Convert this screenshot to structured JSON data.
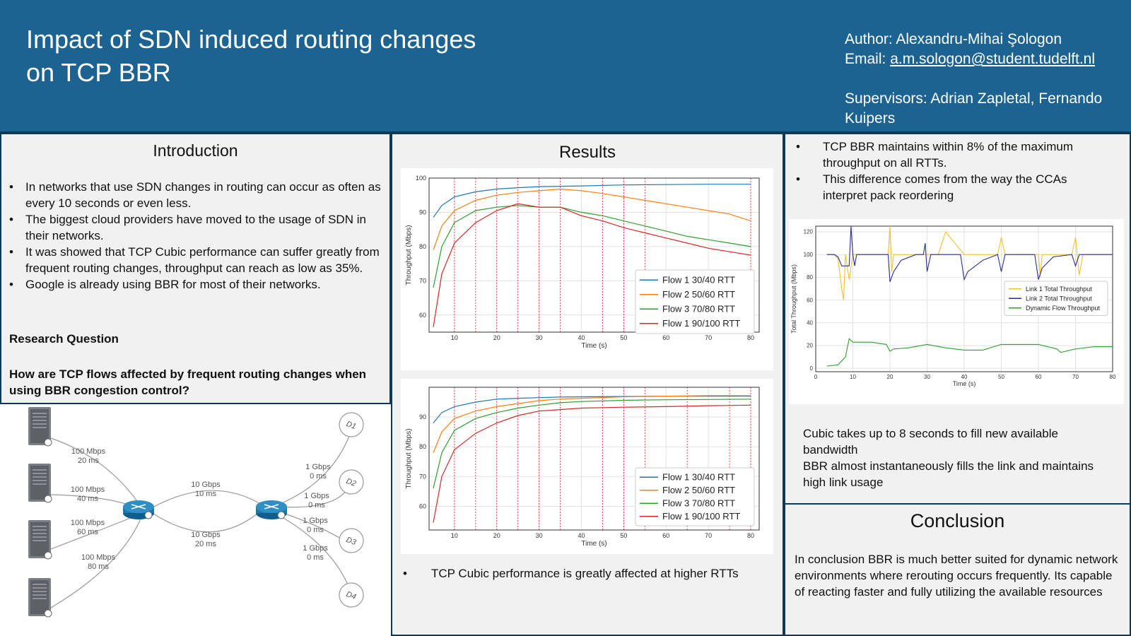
{
  "header": {
    "title_line1": "Impact of SDN induced routing changes",
    "title_line2": "on TCP BBR",
    "author": "Author: Alexandru-Mihai Şologon",
    "email_label": "Email: ",
    "email": "a.m.sologon@student.tudelft.nl",
    "supervisors": "Supervisors: Adrian Zapletal, Fernando Kuipers"
  },
  "introduction": {
    "title": "Introduction",
    "bullets": [
      "In networks that use SDN changes in routing can occur as often as every 10 seconds or even less.",
      "The biggest cloud providers have moved to the usage of SDN in their networks.",
      "It was showed that TCP Cubic performance can suffer greatly from frequent routing changes, throughput can reach as low as 35%.",
      "Google is already using BBR for most of their networks."
    ],
    "rq_heading": "Research Question",
    "rq_text": "How are TCP flows affected by frequent routing changes when using BBR congestion control?"
  },
  "topology": {
    "links_left": [
      "100 Mbps\n20 ms",
      "100 Mbps\n40 ms",
      "100 Mbps\n60 ms",
      "100 Mbps\n80 ms"
    ],
    "link_top": "10 Gbps\n10 ms",
    "link_bottom": "10 Gbps\n20 ms",
    "links_right": [
      "1 Gbps\n0 ms",
      "1 Gbps\n0 ms",
      "1 Gbps\n0 ms",
      "1 Gbps\n0 ms"
    ],
    "destinations": [
      "D1",
      "D2",
      "D3",
      "D4"
    ]
  },
  "results": {
    "title": "Results",
    "bullet": "TCP Cubic performance is greatly affected at higher RTTs"
  },
  "right_top": {
    "bullets": [
      "TCP BBR maintains within 8% of the maximum throughput on all RTTs.",
      "This difference comes from the way the CCAs interpret pack reordering"
    ],
    "cubic_text_1": "Cubic takes up to 8 seconds to fill new available bandwidth",
    "cubic_text_2": "BBR almost instantaneously fills the link and maintains high link usage"
  },
  "conclusion": {
    "title": "Conclusion",
    "text": "In conclusion BBR is much better suited for dynamic network environments where rerouting occurs frequently. Its capable of reacting faster and fully utilizing the available resources"
  },
  "colors": {
    "header_bg": "#1c6391",
    "border": "#0e3a58",
    "panel_bg": "#f1f1f1",
    "flow1": "#1f77b4",
    "flow2": "#ff7f0e",
    "flow3": "#2ca02c",
    "flow4": "#d62728",
    "vline": "#d62728"
  },
  "chart_data": [
    {
      "type": "line",
      "xlabel": "Time (s)",
      "ylabel": "Throughput (Mbps)",
      "xlim": [
        4,
        82
      ],
      "ylim": [
        55,
        100
      ],
      "xticks": [
        10,
        20,
        30,
        40,
        50,
        60,
        70,
        80
      ],
      "yticks": [
        60,
        70,
        80,
        90,
        100
      ],
      "vlines": [
        10,
        15,
        20,
        25,
        30,
        35,
        45,
        50,
        55,
        80
      ],
      "legend": "lower-right",
      "series": [
        {
          "name": "Flow 1 30/40 RTT",
          "x": [
            5,
            7,
            10,
            15,
            20,
            25,
            30,
            35,
            40,
            50,
            60,
            70,
            80
          ],
          "y": [
            88.5,
            92,
            94.5,
            96,
            96.8,
            97.2,
            97.5,
            97.6,
            97.7,
            98,
            98.1,
            98.2,
            98.2
          ]
        },
        {
          "name": "Flow 2 50/60 RTT",
          "x": [
            5,
            7,
            10,
            15,
            20,
            25,
            30,
            35,
            40,
            45,
            50,
            55,
            60,
            65,
            70,
            75,
            80
          ],
          "y": [
            79,
            86,
            90.5,
            93.5,
            95,
            95.8,
            96.3,
            96.8,
            96.3,
            95.5,
            94.5,
            93.5,
            92.5,
            91.5,
            90.5,
            89.5,
            87.5
          ]
        },
        {
          "name": "Flow 3 70/80 RTT",
          "x": [
            5,
            7,
            10,
            15,
            20,
            25,
            30,
            35,
            40,
            45,
            50,
            55,
            60,
            65,
            70,
            75,
            80
          ],
          "y": [
            68,
            80,
            87,
            90.5,
            91.5,
            92,
            91.5,
            91.5,
            90,
            89,
            87.5,
            86,
            84.5,
            83,
            82,
            81,
            80
          ]
        },
        {
          "name": "Flow 1 90/100 RTT",
          "x": [
            5,
            7,
            10,
            15,
            20,
            25,
            30,
            35,
            40,
            45,
            50,
            55,
            60,
            65,
            70,
            75,
            80
          ],
          "y": [
            56.5,
            72,
            81,
            87,
            90.5,
            92.5,
            91.5,
            91.5,
            89,
            87.5,
            85.5,
            84,
            82.5,
            81,
            79.5,
            78.5,
            77.5
          ]
        }
      ]
    },
    {
      "type": "line",
      "xlabel": "Time (s)",
      "ylabel": "Throughput (Mbps)",
      "xlim": [
        4,
        82
      ],
      "ylim": [
        52,
        100
      ],
      "xticks": [
        10,
        20,
        30,
        40,
        50,
        60,
        70,
        80
      ],
      "yticks": [
        60,
        70,
        80,
        90
      ],
      "vlines": [
        10,
        15,
        20,
        25,
        30,
        35,
        45,
        50,
        55,
        65,
        75,
        80
      ],
      "legend": "lower-right",
      "series": [
        {
          "name": "Flow 1 30/40 RTT",
          "x": [
            5,
            7,
            10,
            15,
            20,
            25,
            30,
            35,
            40,
            50,
            60,
            70,
            80
          ],
          "y": [
            88,
            91.5,
            93.5,
            95,
            96,
            96.3,
            96.5,
            96.7,
            96.8,
            96.9,
            97,
            97,
            97
          ]
        },
        {
          "name": "Flow 2 50/60 RTT",
          "x": [
            5,
            7,
            10,
            15,
            20,
            25,
            30,
            35,
            40,
            50,
            60,
            70,
            80
          ],
          "y": [
            78,
            85,
            89.5,
            92,
            93.5,
            94.5,
            95.5,
            96,
            96.3,
            96.8,
            97,
            97.2,
            97.2
          ]
        },
        {
          "name": "Flow 3 70/80 RTT",
          "x": [
            5,
            7,
            10,
            15,
            20,
            25,
            30,
            35,
            40,
            50,
            60,
            70,
            80
          ],
          "y": [
            66,
            78,
            85.5,
            89.5,
            91.5,
            93,
            94,
            94.8,
            95.2,
            95.6,
            95.8,
            95.9,
            96
          ]
        },
        {
          "name": "Flow 1 90/100 RTT",
          "x": [
            5,
            7,
            10,
            15,
            20,
            25,
            30,
            35,
            40,
            50,
            60,
            70,
            80
          ],
          "y": [
            54.5,
            70,
            79,
            84.5,
            88,
            90.5,
            92,
            92.5,
            93,
            93.3,
            93.5,
            93.8,
            94
          ]
        }
      ]
    },
    {
      "type": "line",
      "xlabel": "Time (s)",
      "ylabel": "Total Throughput (Mbps)",
      "xlim": [
        0,
        80
      ],
      "ylim": [
        -3,
        125
      ],
      "xticks": [
        0,
        10,
        20,
        30,
        40,
        50,
        60,
        70,
        80
      ],
      "yticks": [
        0,
        20,
        40,
        60,
        80,
        100,
        120
      ],
      "legend": "center-right",
      "series": [
        {
          "name": "Link 1 Total Throughput",
          "x": [
            3,
            5,
            6,
            7,
            7.5,
            8,
            9,
            10,
            15,
            19.5,
            20,
            20.5,
            21,
            22,
            25,
            28,
            30,
            33,
            35,
            40,
            45,
            49,
            50,
            51,
            55,
            59,
            60,
            60.5,
            61,
            65,
            69,
            70,
            71,
            72,
            80
          ],
          "y": [
            100,
            100,
            96,
            70,
            60,
            100,
            78,
            100,
            100,
            100,
            125,
            85,
            100,
            100,
            100,
            100,
            100,
            100,
            120,
            100,
            100,
            100,
            115,
            100,
            100,
            100,
            100,
            80,
            100,
            100,
            100,
            115,
            82,
            100,
            100
          ]
        },
        {
          "name": "Link 2 Total Throughput",
          "x": [
            3,
            5,
            6,
            7,
            9,
            9.5,
            10,
            10.5,
            11,
            15,
            19.5,
            20,
            21,
            23,
            27,
            29,
            29.5,
            30,
            31,
            33,
            39,
            40,
            41,
            45,
            49,
            50,
            51,
            54,
            59,
            60,
            61,
            64,
            69,
            70,
            71,
            80
          ],
          "y": [
            100,
            100,
            98,
            90,
            90,
            125,
            100,
            90,
            100,
            100,
            100,
            76,
            85,
            95,
            100,
            100,
            110,
            85,
            100,
            100,
            100,
            78,
            85,
            95,
            100,
            85,
            100,
            100,
            100,
            78,
            88,
            98,
            100,
            90,
            100,
            100
          ]
        },
        {
          "name": "Dynamic Flow Throughput",
          "x": [
            3,
            6,
            8,
            9,
            10,
            15,
            19,
            20,
            21,
            25,
            30,
            35,
            40,
            45,
            50,
            55,
            60,
            65,
            66,
            70,
            75,
            80
          ],
          "y": [
            2,
            3,
            10,
            26,
            23,
            23,
            21,
            15,
            17,
            18,
            21,
            18,
            16,
            16,
            21,
            21,
            21,
            17,
            14,
            17,
            19,
            19
          ]
        }
      ]
    }
  ]
}
